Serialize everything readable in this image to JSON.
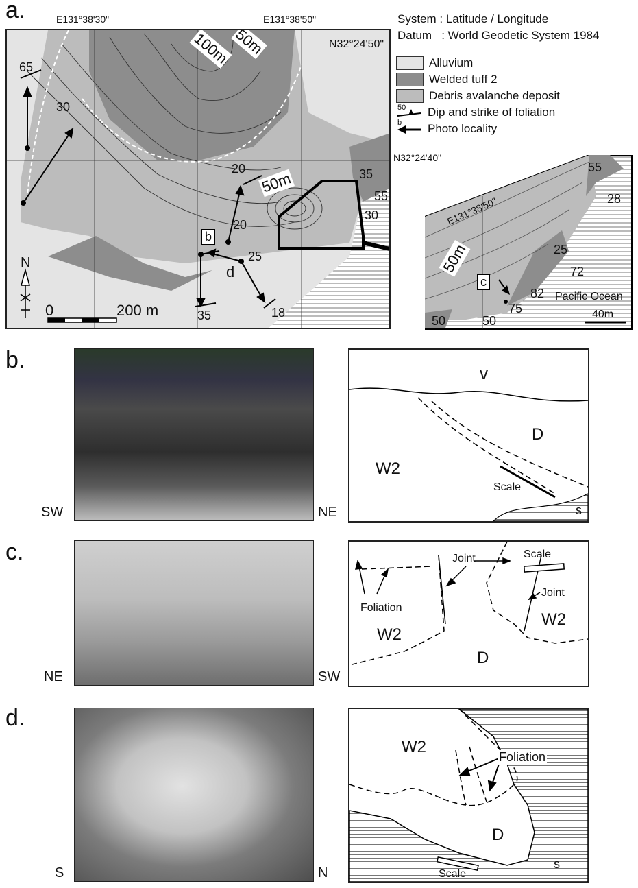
{
  "panels": {
    "a": {
      "letter": "a.",
      "coords": {
        "lon_left": "E131°38'30\"",
        "lon_right": "E131°38'50\"",
        "lat_top": "N32°24'50\"",
        "lat_mid": "N32°24'40\"",
        "inset_lon": "E131°38'50\""
      },
      "system_line": "System : Latitude / Longitude",
      "datum_line": "Datum   : World Geodetic System 1984",
      "legend": [
        {
          "label": "Alluvium",
          "color": "#e4e4e4"
        },
        {
          "label": "Welded tuff 2",
          "color": "#8d8d8d"
        },
        {
          "label": "Debris avalanche deposit",
          "color": "#bcbcbc"
        },
        {
          "label": "Dip and strike of foliation",
          "symbol_value": "50"
        },
        {
          "label": "Photo locality",
          "symbol_value": "b"
        }
      ],
      "contours": [
        "100m",
        "50m",
        "50m",
        "50m"
      ],
      "dips": [
        "65",
        "30",
        "20",
        "35",
        "55",
        "30",
        "20",
        "25",
        "35",
        "18"
      ],
      "inset_dips": [
        "55",
        "28",
        "25",
        "72",
        "82",
        "75",
        "50",
        "50"
      ],
      "photo_points": [
        "b",
        "d",
        "c"
      ],
      "north": "N",
      "scale_zero": "0",
      "scale_main": "200 m",
      "scale_inset": "40m",
      "ocean": "Pacific Ocean"
    },
    "b": {
      "letter": "b.",
      "left_dir": "SW",
      "right_dir": "NE",
      "units": {
        "v": "v",
        "d": "D",
        "w2": "W2",
        "s": "s",
        "scale": "Scale"
      }
    },
    "c": {
      "letter": "c.",
      "left_dir": "NE",
      "right_dir": "SW",
      "units": {
        "w2_left": "W2",
        "w2_right": "W2",
        "d": "D",
        "joint1": "Joint",
        "joint2": "Joint",
        "foliation": "Foliation",
        "scale": "Scale"
      }
    },
    "d": {
      "letter": "d.",
      "left_dir": "S",
      "right_dir": "N",
      "units": {
        "w2": "W2",
        "d": "D",
        "s": "s",
        "foliation": "Foliation",
        "scale": "Scale"
      }
    }
  }
}
